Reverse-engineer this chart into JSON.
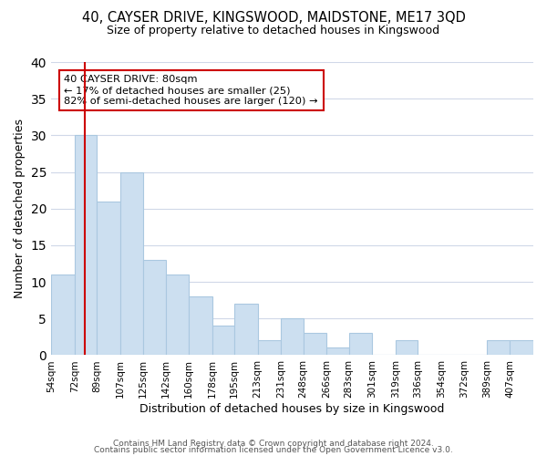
{
  "title1": "40, CAYSER DRIVE, KINGSWOOD, MAIDSTONE, ME17 3QD",
  "title2": "Size of property relative to detached houses in Kingswood",
  "xlabel": "Distribution of detached houses by size in Kingswood",
  "ylabel": "Number of detached properties",
  "bin_labels": [
    "54sqm",
    "72sqm",
    "89sqm",
    "107sqm",
    "125sqm",
    "142sqm",
    "160sqm",
    "178sqm",
    "195sqm",
    "213sqm",
    "231sqm",
    "248sqm",
    "266sqm",
    "283sqm",
    "301sqm",
    "319sqm",
    "336sqm",
    "354sqm",
    "372sqm",
    "389sqm",
    "407sqm"
  ],
  "bar_heights": [
    11,
    30,
    21,
    25,
    13,
    11,
    8,
    4,
    7,
    2,
    5,
    3,
    1,
    3,
    0,
    2,
    0,
    0,
    0,
    2,
    2
  ],
  "bar_edges": [
    54,
    72,
    89,
    107,
    125,
    142,
    160,
    178,
    195,
    213,
    231,
    248,
    266,
    283,
    301,
    319,
    336,
    354,
    372,
    389,
    407,
    425
  ],
  "bar_color": "#ccdff0",
  "bar_edge_color": "#aac8e0",
  "vline_color": "#cc0000",
  "vline_x": 80,
  "annotation_title": "40 CAYSER DRIVE: 80sqm",
  "annotation_line1": "← 17% of detached houses are smaller (25)",
  "annotation_line2": "82% of semi-detached houses are larger (120) →",
  "box_edge_color": "#cc0000",
  "ylim": [
    0,
    40
  ],
  "yticks": [
    0,
    5,
    10,
    15,
    20,
    25,
    30,
    35,
    40
  ],
  "footer1": "Contains HM Land Registry data © Crown copyright and database right 2024.",
  "footer2": "Contains public sector information licensed under the Open Government Licence v3.0."
}
